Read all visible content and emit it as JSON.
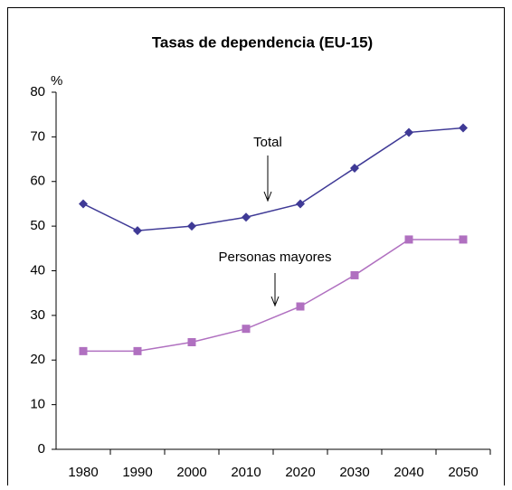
{
  "chart_data": {
    "type": "line",
    "title": "Tasas de dependencia (EU-15)",
    "y_unit": "%",
    "categories": [
      "1980",
      "1990",
      "2000",
      "2010",
      "2020",
      "2030",
      "2040",
      "2050"
    ],
    "series": [
      {
        "name": "Total",
        "color": "#3f3a96",
        "marker": "diamond",
        "values": [
          55,
          49,
          50,
          52,
          55,
          63,
          71,
          72
        ]
      },
      {
        "name": "Personas mayores",
        "color": "#b070c0",
        "marker": "square",
        "values": [
          22,
          22,
          24,
          27,
          32,
          39,
          47,
          47
        ]
      }
    ],
    "ylim": [
      0,
      80
    ],
    "yticks": [
      0,
      10,
      20,
      30,
      40,
      50,
      60,
      70,
      80
    ],
    "grid": false
  }
}
